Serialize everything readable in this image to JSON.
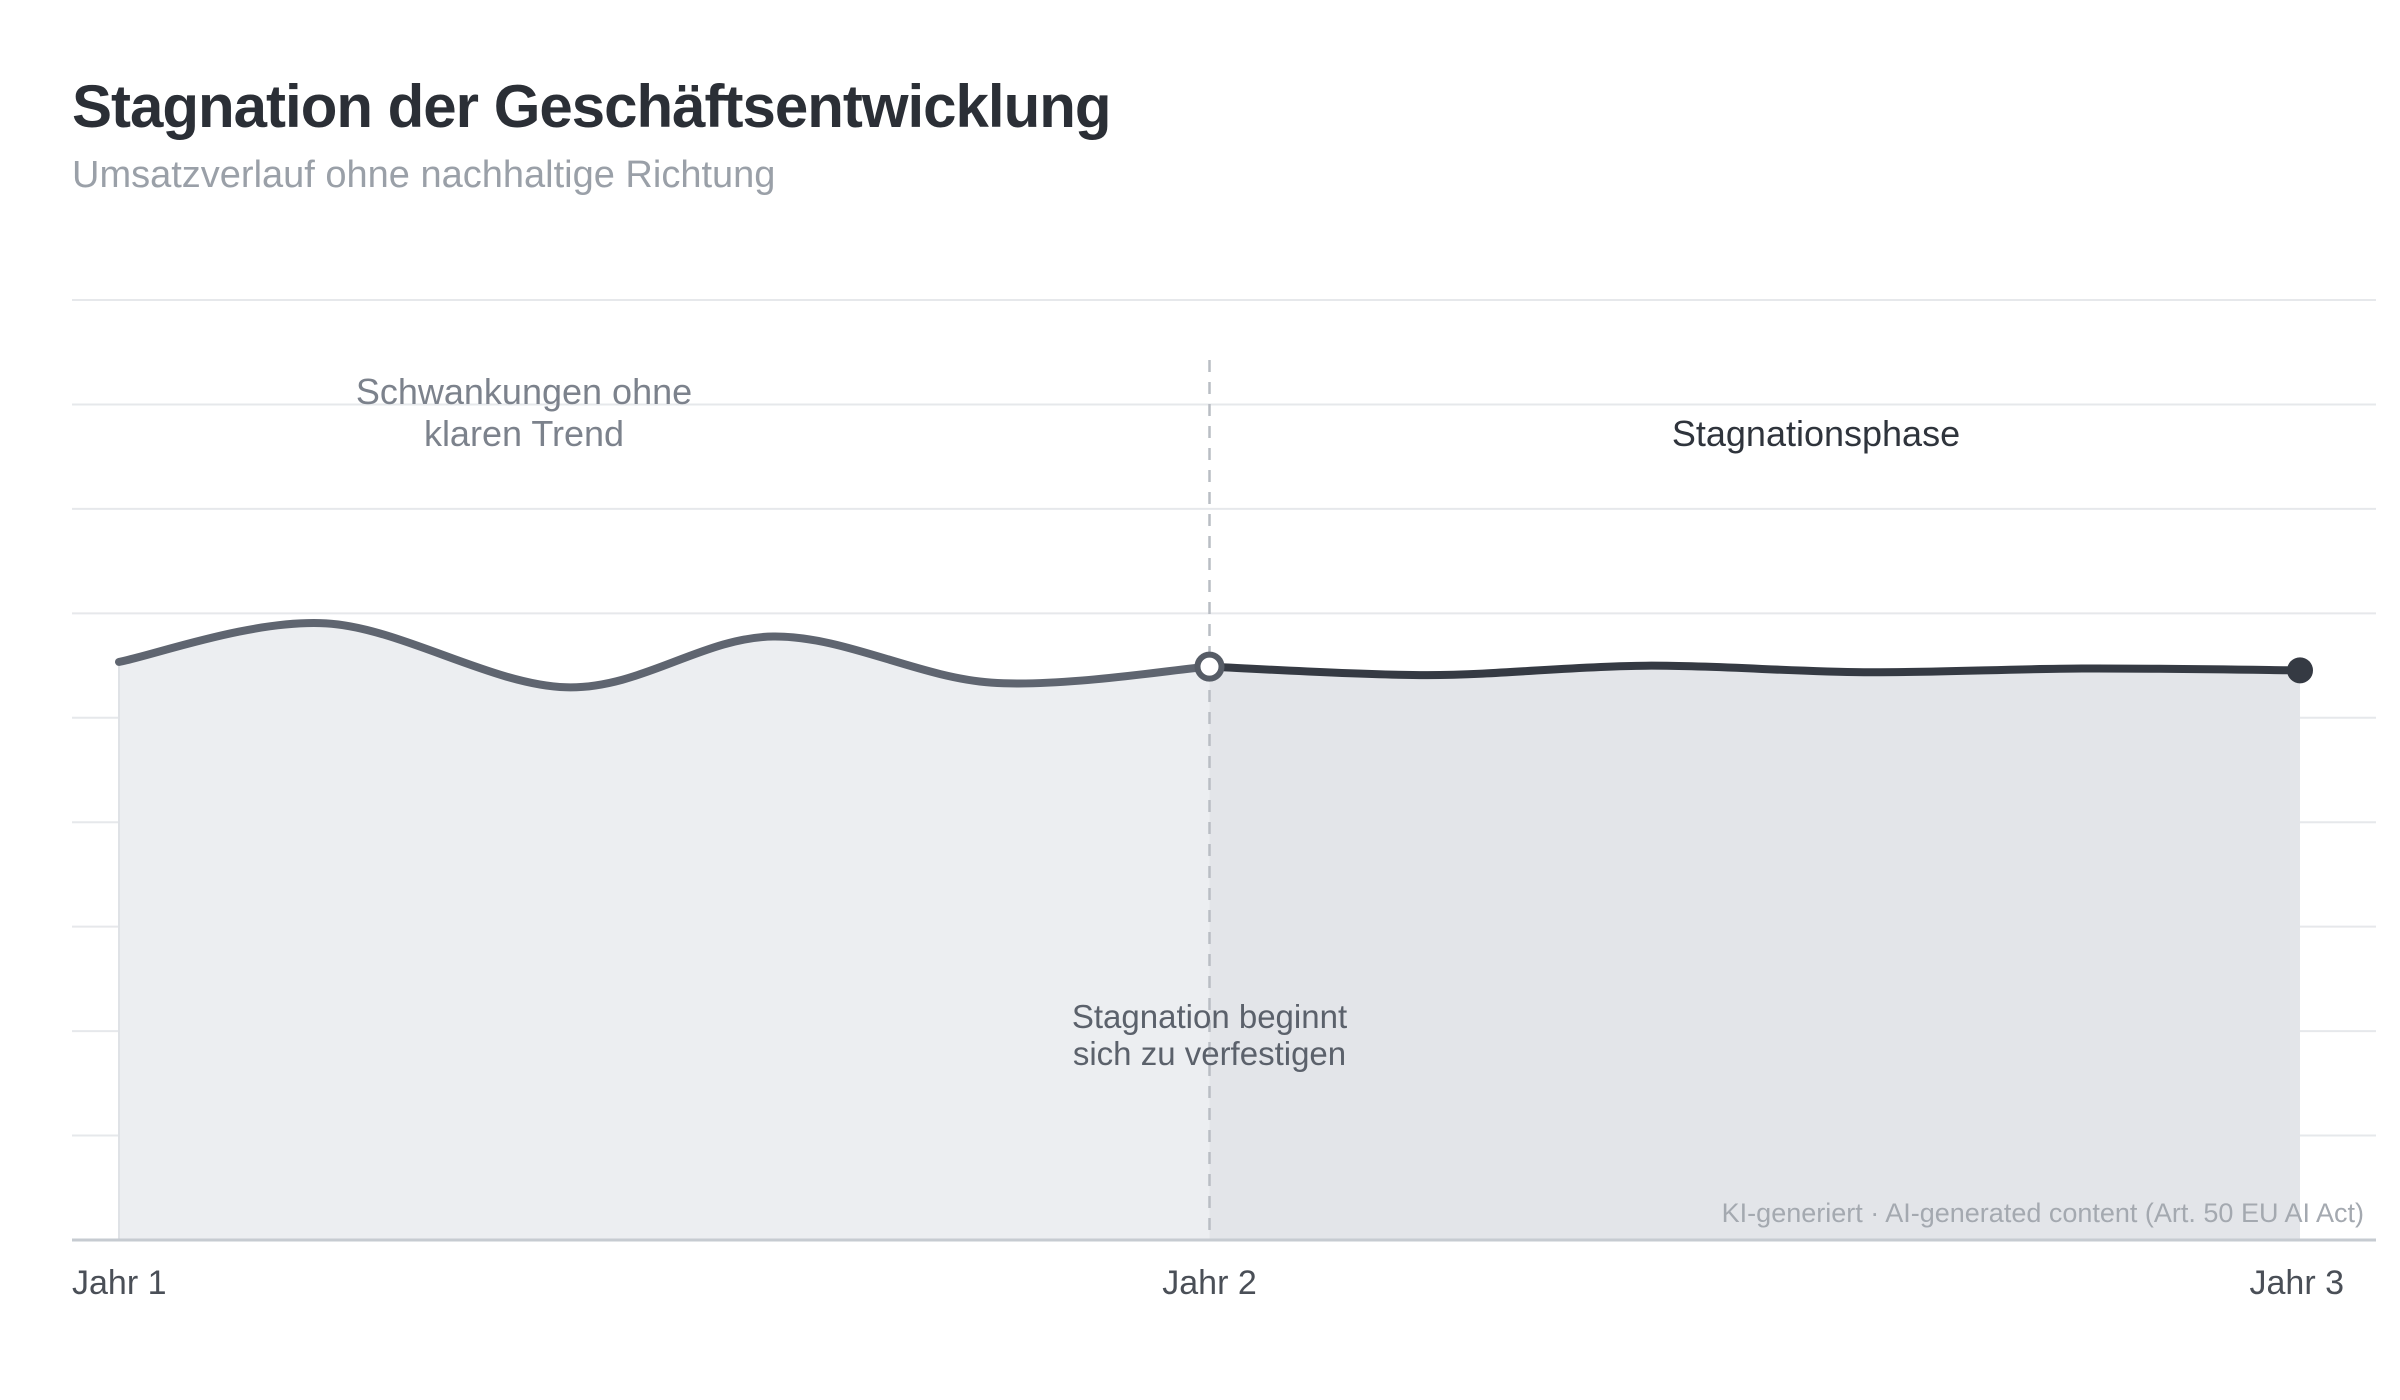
{
  "page": {
    "title": "Stagnation der Geschäftsentwicklung",
    "subtitle": "Umsatzverlauf ohne nachhaltige Richtung"
  },
  "chart_data": {
    "type": "area",
    "title": "Stagnation der Geschäftsentwicklung",
    "subtitle": "Umsatzverlauf ohne nachhaltige Richtung",
    "xlabel": "",
    "ylabel": "",
    "x_tick_labels": [
      "Jahr 1",
      "Jahr 2",
      "Jahr 3"
    ],
    "xlim": [
      0,
      2
    ],
    "ylim": [
      0,
      100
    ],
    "y_axis_labels_shown": false,
    "grid": "horizontal",
    "series": [
      {
        "segment": "fluctuation",
        "color": "#5f6570",
        "fill": "#eceef1",
        "points": [
          {
            "x": 0.0,
            "y": 61.5
          },
          {
            "x": 0.19,
            "y": 65.6
          },
          {
            "x": 0.41,
            "y": 58.8
          },
          {
            "x": 0.6,
            "y": 64.2
          },
          {
            "x": 0.8,
            "y": 59.3
          },
          {
            "x": 1.0,
            "y": 61.0
          }
        ]
      },
      {
        "segment": "stagnation",
        "color": "#353a43",
        "fill": "#e3e5e9",
        "points": [
          {
            "x": 1.0,
            "y": 61.0
          },
          {
            "x": 1.2,
            "y": 60.1
          },
          {
            "x": 1.4,
            "y": 61.1
          },
          {
            "x": 1.6,
            "y": 60.4
          },
          {
            "x": 1.8,
            "y": 60.8
          },
          {
            "x": 2.0,
            "y": 60.6
          }
        ]
      }
    ],
    "divider_x": 1.0,
    "annotations": {
      "left_region": [
        "Schwankungen ohne",
        "klaren Trend"
      ],
      "right_region": "Stagnationsphase",
      "divider": [
        "Stagnation beginnt",
        "sich zu verfestigen"
      ]
    },
    "footnote": "KI-generiert · AI-generated content (Art. 50 EU AI Act)",
    "colors": {
      "grid": "#e6e8eb",
      "axis": "#c6cbd1",
      "divider": "#b9bdc4",
      "annotation_muted": "#7c828c",
      "annotation_dark": "#2f343c",
      "annotation_mid": "#5b616b",
      "tick_label": "#4a4f57",
      "footnote": "#a4a9b0"
    }
  }
}
